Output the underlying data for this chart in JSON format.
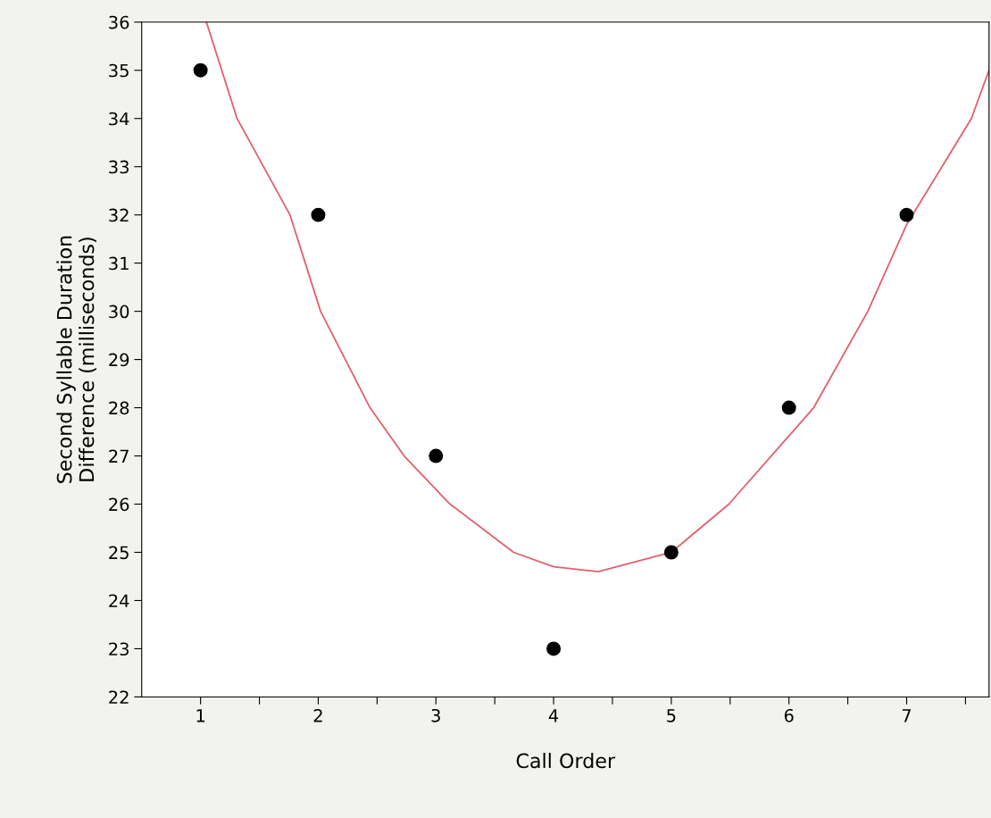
{
  "chart_data": {
    "type": "scatter",
    "xlabel": "Call Order",
    "ylabel": "Second Syllable Duration\nDifference (milliseconds)",
    "xlim": [
      0.5,
      7.7
    ],
    "ylim": [
      22,
      36
    ],
    "xticks": [
      1,
      {
        "value": 1.5,
        "label": null
      },
      2,
      {
        "value": 2.5,
        "label": null
      },
      3,
      {
        "value": 3.5,
        "label": null
      },
      4,
      {
        "value": 4.5,
        "label": null
      },
      5,
      {
        "value": 5.5,
        "label": null
      },
      6,
      {
        "value": 6.5,
        "label": null
      },
      7,
      {
        "value": 7.5,
        "label": null
      }
    ],
    "yticks": [
      22,
      23,
      24,
      25,
      26,
      27,
      28,
      29,
      30,
      31,
      32,
      33,
      34,
      35,
      36
    ],
    "grid": false,
    "legend": false,
    "series": [
      {
        "color": "#000000",
        "marker": "circle",
        "x": [
          1,
          2,
          3,
          4,
          5,
          6,
          7
        ],
        "values": [
          35,
          32,
          27,
          23,
          25,
          28,
          32
        ]
      },
      {
        "type": "line",
        "color": "#e0606e",
        "marker": "none",
        "line_style": "solid",
        "x": [
          1.05,
          1.31,
          1.76,
          2.02,
          2.44,
          2.73,
          3.12,
          3.66,
          4.0,
          4.38,
          5.0,
          5.49,
          6.21,
          6.67,
          7.0,
          7.55,
          7.7
        ],
        "values": [
          36,
          34,
          32,
          30,
          28,
          27,
          26,
          25,
          24.7,
          24.6,
          25,
          26,
          28,
          30,
          31.8,
          34,
          35
        ]
      }
    ]
  }
}
